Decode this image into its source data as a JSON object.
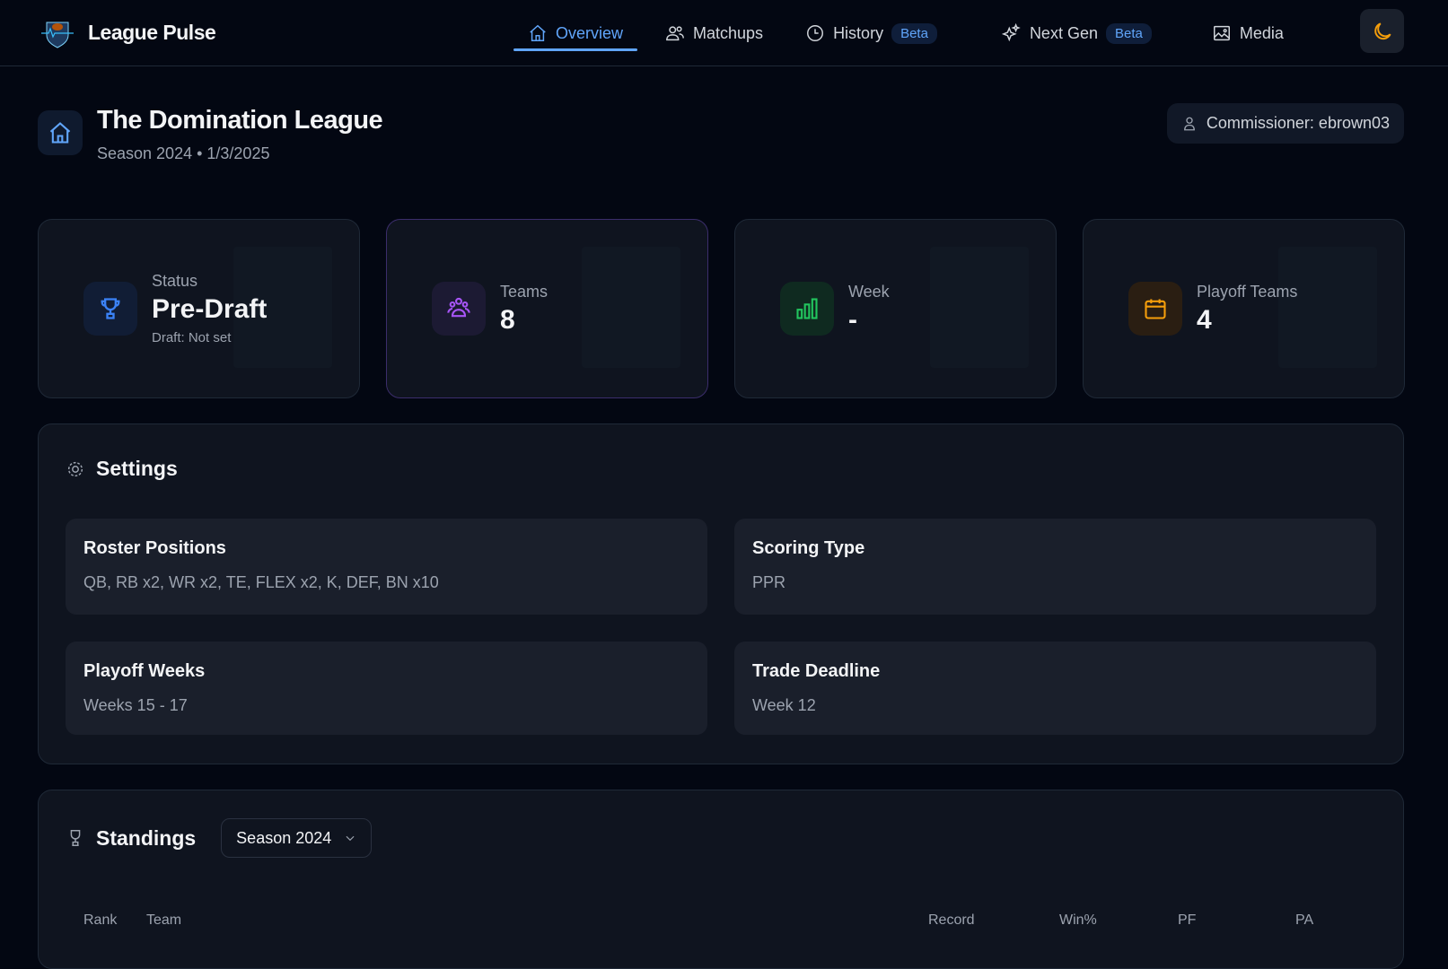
{
  "app": {
    "name": "League Pulse"
  },
  "nav": {
    "items": [
      {
        "label": "Overview",
        "icon": "home-icon",
        "active": true
      },
      {
        "label": "Matchups",
        "icon": "users-icon"
      },
      {
        "label": "History",
        "icon": "clock-icon",
        "badge": "Beta"
      },
      {
        "label": "Next Gen",
        "icon": "sparkles-icon",
        "badge": "Beta"
      },
      {
        "label": "Media",
        "icon": "image-icon"
      }
    ],
    "theme_icon": "moon-icon"
  },
  "header": {
    "title": "The Domination League",
    "subtitle": "Season 2024 • 1/3/2025",
    "commissioner": "Commissioner: ebrown03"
  },
  "cards": [
    {
      "label": "Status",
      "value": "Pre-Draft",
      "note": "Draft: Not set",
      "icon": "trophy-icon",
      "color": "#3b82f6"
    },
    {
      "label": "Teams",
      "value": "8",
      "icon": "users-group-icon",
      "color": "#a855f7"
    },
    {
      "label": "Week",
      "value": "-",
      "icon": "bar-chart-icon",
      "color": "#22c55e"
    },
    {
      "label": "Playoff Teams",
      "value": "4",
      "icon": "calendar-icon",
      "color": "#f59e0b"
    }
  ],
  "settings": {
    "title": "Settings",
    "items": [
      {
        "label": "Roster Positions",
        "value": "QB, RB x2, WR x2, TE, FLEX x2, K, DEF, BN x10"
      },
      {
        "label": "Scoring Type",
        "value": "PPR"
      },
      {
        "label": "Playoff Weeks",
        "value": "Weeks 15 - 17"
      },
      {
        "label": "Trade Deadline",
        "value": "Week 12"
      }
    ]
  },
  "standings": {
    "title": "Standings",
    "season_select": "Season 2024",
    "columns": [
      "Rank",
      "Team",
      "Record",
      "Win%",
      "PF",
      "PA"
    ]
  }
}
